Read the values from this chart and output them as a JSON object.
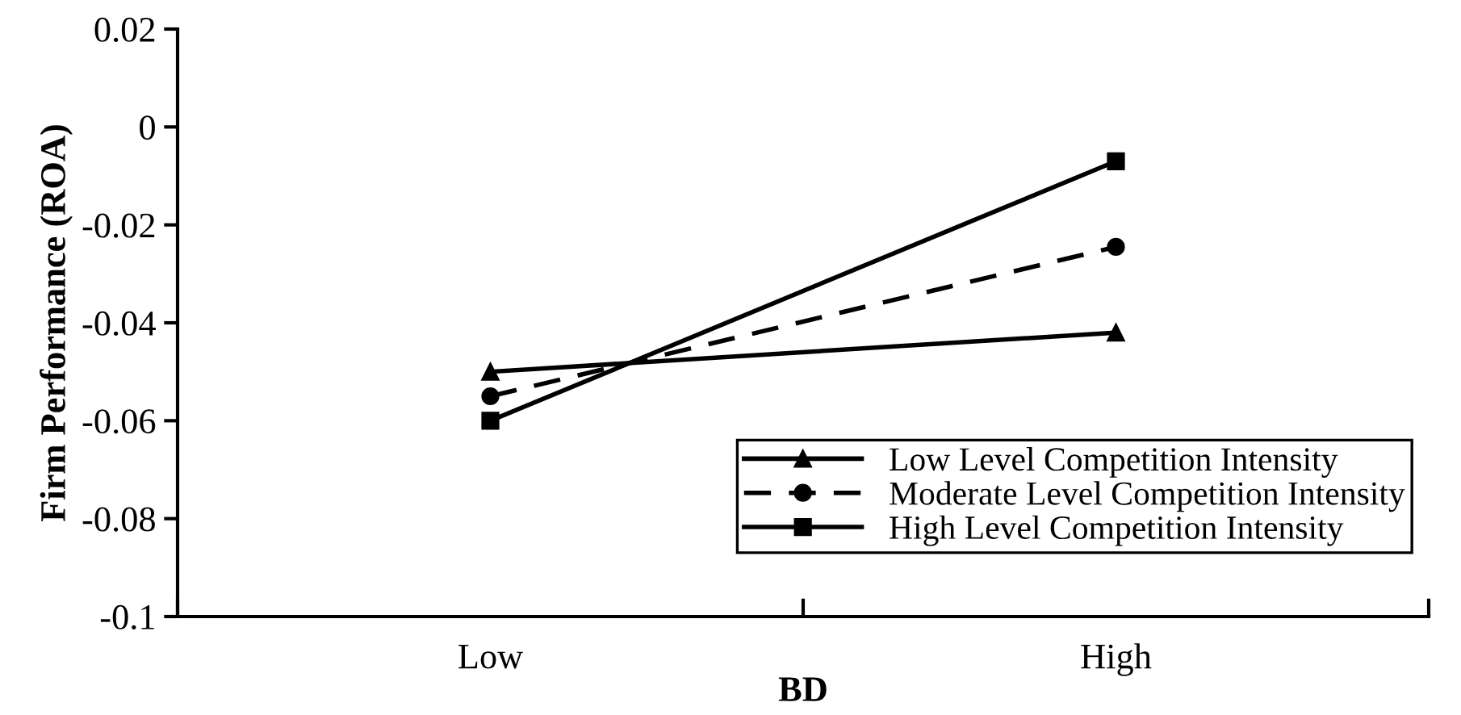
{
  "chart_data": {
    "type": "line",
    "xlabel": "BD",
    "ylabel": "Firm Performance (ROA)",
    "categories": [
      "Low",
      "High"
    ],
    "ylim": [
      -0.1,
      0.02
    ],
    "yticks": [
      {
        "value": -0.1,
        "label": "-0.1"
      },
      {
        "value": -0.08,
        "label": "-0.08"
      },
      {
        "value": -0.06,
        "label": "-0.06"
      },
      {
        "value": -0.04,
        "label": "-0.04"
      },
      {
        "value": -0.02,
        "label": "-0.02"
      },
      {
        "value": 0,
        "label": "0"
      },
      {
        "value": 0.02,
        "label": "0.02"
      }
    ],
    "grid": false,
    "legend": "bottom right",
    "series": [
      {
        "name": "Low Level Competition Intensity",
        "color": "#000000",
        "marker": "triangle",
        "line_style": "solid",
        "values": [
          -0.05,
          -0.042
        ]
      },
      {
        "name": "Moderate Level Competition Intensity",
        "color": "#000000",
        "marker": "circle",
        "line_style": "dashed",
        "values": [
          -0.055,
          -0.0245
        ]
      },
      {
        "name": "High Level Competition Intensity",
        "color": "#000000",
        "marker": "square",
        "line_style": "solid",
        "values": [
          -0.06,
          -0.007
        ]
      }
    ]
  }
}
